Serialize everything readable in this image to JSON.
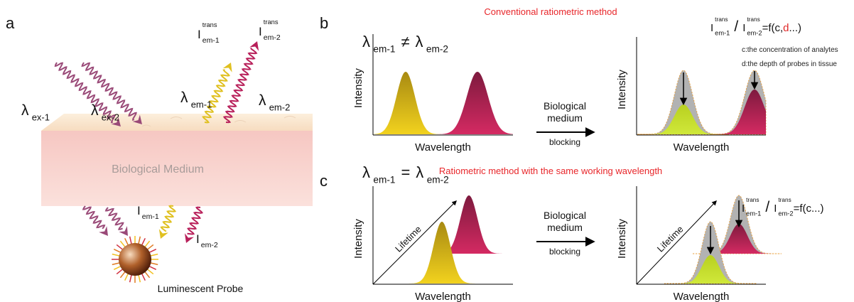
{
  "panel_a": {
    "label": "a",
    "excitation": [
      {
        "symbol": "λ",
        "sub": "ex-1"
      },
      {
        "symbol": "λ",
        "sub": "ex-2"
      }
    ],
    "emission": [
      {
        "symbol": "λ",
        "sub": "em-1"
      },
      {
        "symbol": "λ",
        "sub": "em-2"
      }
    ],
    "transmitted": [
      {
        "symbol": "I",
        "sup": "trans",
        "sub": "em-1"
      },
      {
        "symbol": "I",
        "sup": "trans",
        "sub": "em-2"
      }
    ],
    "medium": "Biological Medium",
    "emitted": [
      {
        "symbol": "I",
        "sub": "em-1"
      },
      {
        "symbol": "I",
        "sub": "em-2"
      }
    ],
    "probe": "Luminescent Probe"
  },
  "panel_b": {
    "label": "b",
    "title": "Conventional ratiometric method",
    "condition": {
      "left": {
        "symbol": "λ",
        "sub": "em-1"
      },
      "relation": "≠",
      "right": {
        "symbol": "λ",
        "sub": "em-2"
      }
    },
    "before": {
      "y_label": "Intensity",
      "x_label": "Wavelength"
    },
    "process": {
      "lines": [
        "Biological",
        "medium"
      ],
      "below": "blocking"
    },
    "after": {
      "y_label": "Intensity",
      "x_label": "Wavelength"
    },
    "formula": {
      "numerator": {
        "symbol": "I",
        "sup": "trans",
        "sub": "em-1"
      },
      "slash": "/",
      "denominator": {
        "symbol": "I",
        "sup": "trans",
        "sub": "em-2"
      },
      "result": [
        "=f(c,",
        "d",
        "...)"
      ]
    },
    "notes": [
      "c:the concentration of analytes",
      "d:the depth of probes in tissue"
    ]
  },
  "panel_c": {
    "label": "c",
    "title": "Ratiometric method with the same working wavelength",
    "condition": {
      "left": {
        "symbol": "λ",
        "sub": "em-1"
      },
      "relation": "=",
      "right": {
        "symbol": "λ",
        "sub": "em-2"
      }
    },
    "before": {
      "y_label": "Intensity",
      "z_label": "Lifetime",
      "x_label": "Wavelength"
    },
    "process": {
      "lines": [
        "Biological",
        "medium"
      ],
      "below": "blocking"
    },
    "after": {
      "y_label": "Intensity",
      "z_label": "Lifetime",
      "x_label": "Wavelength"
    },
    "formula": {
      "numerator": {
        "symbol": "I",
        "sup": "trans",
        "sub": "em-1"
      },
      "slash": "/",
      "denominator": {
        "symbol": "I",
        "sup": "trans",
        "sub": "em-2"
      },
      "result": [
        "=f(c...)"
      ]
    }
  }
}
